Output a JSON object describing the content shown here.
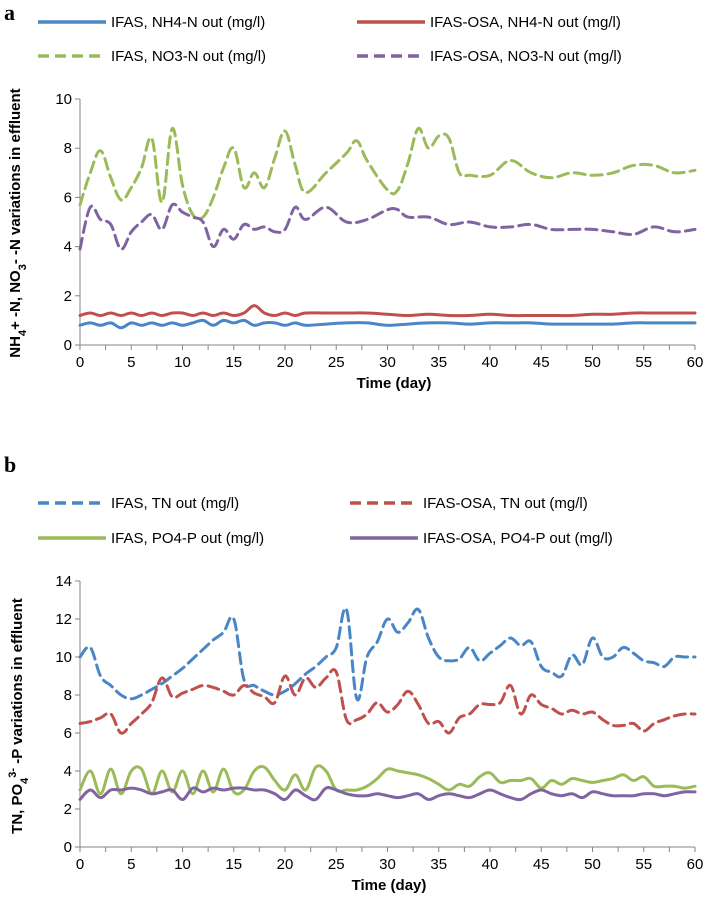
{
  "chart_data": [
    {
      "type": "line",
      "panel": "a",
      "xlabel": "Time (day)",
      "ylabel_parts": [
        "NH",
        "4",
        "+ -N, NO",
        "3",
        "- -N variations in effluent"
      ],
      "xlim": [
        0,
        60
      ],
      "ylim": [
        0,
        10
      ],
      "xticks": [
        0,
        5,
        10,
        15,
        20,
        25,
        30,
        35,
        40,
        45,
        50,
        55,
        60
      ],
      "yticks": [
        0,
        2,
        4,
        6,
        8,
        10
      ],
      "grid": false,
      "legend_position": "top",
      "series": [
        {
          "name": "IFAS, NH4-N out (mg/l)",
          "color": "#4a86c6",
          "dash": "solid",
          "x": [
            0,
            1,
            2,
            3,
            4,
            5,
            6,
            7,
            8,
            9,
            10,
            11,
            12,
            13,
            14,
            15,
            16,
            17,
            18,
            19,
            20,
            21,
            22,
            24,
            26,
            28,
            30,
            32,
            34,
            36,
            38,
            40,
            42,
            44,
            46,
            48,
            50,
            52,
            54,
            56,
            58,
            60
          ],
          "y": [
            0.8,
            0.9,
            0.8,
            0.9,
            0.7,
            0.9,
            0.8,
            0.9,
            0.8,
            0.9,
            0.8,
            0.9,
            1.0,
            0.8,
            1.0,
            0.9,
            1.0,
            0.8,
            0.9,
            0.9,
            0.8,
            0.9,
            0.8,
            0.85,
            0.9,
            0.9,
            0.8,
            0.85,
            0.9,
            0.9,
            0.85,
            0.9,
            0.9,
            0.9,
            0.85,
            0.85,
            0.85,
            0.85,
            0.9,
            0.9,
            0.9,
            0.9
          ]
        },
        {
          "name": "IFAS-OSA, NH4-N out (mg/l)",
          "color": "#c0504d",
          "dash": "solid",
          "x": [
            0,
            1,
            2,
            3,
            4,
            5,
            6,
            7,
            8,
            9,
            10,
            11,
            12,
            13,
            14,
            15,
            16,
            17,
            18,
            19,
            20,
            21,
            22,
            24,
            26,
            28,
            30,
            32,
            34,
            36,
            38,
            40,
            42,
            44,
            46,
            48,
            50,
            52,
            54,
            56,
            58,
            60
          ],
          "y": [
            1.2,
            1.3,
            1.2,
            1.3,
            1.2,
            1.3,
            1.2,
            1.3,
            1.2,
            1.3,
            1.3,
            1.2,
            1.3,
            1.2,
            1.3,
            1.2,
            1.3,
            1.6,
            1.3,
            1.2,
            1.3,
            1.2,
            1.3,
            1.3,
            1.3,
            1.3,
            1.25,
            1.2,
            1.25,
            1.2,
            1.2,
            1.25,
            1.2,
            1.2,
            1.2,
            1.2,
            1.25,
            1.25,
            1.3,
            1.3,
            1.3,
            1.3
          ]
        },
        {
          "name": "IFAS, NO3-N out (mg/l)",
          "color": "#9bbb59",
          "dash": "dashed",
          "x": [
            0,
            1,
            2,
            3,
            4,
            5,
            6,
            7,
            8,
            9,
            10,
            11,
            12,
            13,
            14,
            15,
            16,
            17,
            18,
            19,
            20,
            21,
            22,
            24,
            26,
            27,
            28,
            30,
            31,
            32,
            33,
            34,
            35,
            36,
            37,
            38,
            40,
            42,
            44,
            46,
            48,
            50,
            52,
            54,
            56,
            58,
            60
          ],
          "y": [
            5.7,
            7.0,
            7.9,
            6.8,
            5.9,
            6.4,
            7.2,
            8.4,
            5.8,
            8.8,
            6.5,
            5.3,
            5.2,
            6.0,
            7.2,
            8.0,
            6.4,
            7.0,
            6.4,
            7.6,
            8.7,
            7.3,
            6.2,
            7.0,
            7.8,
            8.3,
            7.5,
            6.3,
            6.3,
            7.4,
            8.8,
            8.0,
            8.5,
            8.4,
            7.0,
            6.9,
            6.9,
            7.5,
            7.0,
            6.8,
            7.0,
            6.9,
            7.0,
            7.3,
            7.3,
            7.0,
            7.1
          ]
        },
        {
          "name": "IFAS-OSA, NO3-N out (mg/l)",
          "color": "#8064a2",
          "dash": "dashed",
          "x": [
            0,
            1,
            2,
            3,
            4,
            5,
            6,
            7,
            8,
            9,
            10,
            11,
            12,
            13,
            14,
            15,
            16,
            17,
            18,
            19,
            20,
            21,
            22,
            24,
            26,
            28,
            30,
            31,
            32,
            34,
            36,
            38,
            40,
            42,
            44,
            46,
            48,
            50,
            52,
            54,
            56,
            58,
            60
          ],
          "y": [
            3.9,
            5.6,
            5.1,
            4.9,
            3.9,
            4.6,
            5.0,
            5.3,
            4.7,
            5.7,
            5.4,
            5.2,
            5.0,
            4.0,
            4.7,
            4.3,
            4.9,
            4.7,
            4.8,
            4.6,
            4.7,
            5.6,
            5.1,
            5.6,
            5.0,
            5.1,
            5.5,
            5.5,
            5.2,
            5.2,
            4.9,
            5.0,
            4.8,
            4.8,
            4.9,
            4.7,
            4.7,
            4.7,
            4.6,
            4.5,
            4.8,
            4.6,
            4.7
          ]
        }
      ]
    },
    {
      "type": "line",
      "panel": "b",
      "xlabel": "Time (day)",
      "ylabel_parts": [
        "TN, PO",
        "4",
        "3-",
        " -P variations in effluent"
      ],
      "xlim": [
        0,
        60
      ],
      "ylim": [
        0,
        14
      ],
      "xticks": [
        0,
        5,
        10,
        15,
        20,
        25,
        30,
        35,
        40,
        45,
        50,
        55,
        60
      ],
      "yticks": [
        0,
        2,
        4,
        6,
        8,
        10,
        12,
        14
      ],
      "grid": false,
      "legend_position": "top",
      "series": [
        {
          "name": "IFAS, TN out (mg/l)",
          "color": "#4a86c6",
          "dash": "dashed",
          "x": [
            0,
            1,
            2,
            3,
            4,
            5,
            6,
            7,
            8,
            9,
            10,
            11,
            12,
            13,
            14,
            15,
            16,
            17,
            18,
            19,
            20,
            21,
            22,
            23,
            24,
            25,
            26,
            27,
            28,
            29,
            30,
            31,
            32,
            33,
            34,
            35,
            36,
            37,
            38,
            39,
            40,
            41,
            42,
            43,
            44,
            45,
            46,
            47,
            48,
            49,
            50,
            51,
            52,
            53,
            54,
            55,
            56,
            57,
            58,
            59,
            60
          ],
          "y": [
            10.0,
            10.5,
            9.0,
            8.5,
            8.0,
            7.8,
            8.0,
            8.3,
            8.6,
            9.0,
            9.4,
            9.9,
            10.4,
            10.9,
            11.3,
            12.0,
            8.8,
            8.5,
            8.2,
            8.0,
            8.2,
            8.6,
            9.1,
            9.5,
            10.0,
            10.5,
            12.5,
            7.8,
            10.0,
            10.8,
            12.0,
            11.3,
            11.8,
            12.5,
            11.0,
            10.0,
            9.8,
            9.9,
            10.5,
            9.8,
            10.2,
            10.6,
            11.0,
            10.6,
            10.8,
            9.5,
            9.2,
            9.0,
            10.1,
            9.6,
            11.0,
            10.0,
            10.0,
            10.5,
            10.2,
            9.8,
            9.7,
            9.5,
            10.0,
            10.0,
            10.0
          ]
        },
        {
          "name": "IFAS-OSA, TN out (mg/l)",
          "color": "#c0504d",
          "dash": "dashed",
          "x": [
            0,
            1,
            2,
            3,
            4,
            5,
            6,
            7,
            8,
            9,
            10,
            11,
            12,
            13,
            14,
            15,
            16,
            17,
            18,
            19,
            20,
            21,
            22,
            23,
            24,
            25,
            26,
            27,
            28,
            29,
            30,
            31,
            32,
            33,
            34,
            35,
            36,
            37,
            38,
            39,
            40,
            41,
            42,
            43,
            44,
            45,
            46,
            47,
            48,
            49,
            50,
            51,
            52,
            53,
            54,
            55,
            56,
            57,
            58,
            59,
            60
          ],
          "y": [
            6.5,
            6.6,
            6.8,
            7.0,
            6.0,
            6.5,
            7.0,
            7.6,
            8.9,
            7.9,
            8.1,
            8.3,
            8.5,
            8.4,
            8.2,
            8.0,
            8.5,
            8.1,
            7.9,
            7.6,
            9.0,
            8.0,
            8.9,
            8.4,
            8.9,
            9.2,
            6.7,
            6.7,
            7.0,
            7.6,
            7.1,
            7.5,
            8.2,
            7.5,
            6.5,
            6.6,
            6.0,
            6.8,
            7.0,
            7.5,
            7.5,
            7.6,
            8.5,
            7.0,
            8.0,
            7.5,
            7.3,
            7.0,
            7.2,
            7.0,
            7.1,
            6.7,
            6.4,
            6.4,
            6.5,
            6.1,
            6.5,
            6.7,
            6.9,
            7.0,
            7.0
          ]
        },
        {
          "name": "IFAS, PO4-P out (mg/l)",
          "color": "#9bbb59",
          "dash": "solid",
          "x": [
            0,
            1,
            2,
            3,
            4,
            5,
            6,
            7,
            8,
            9,
            10,
            11,
            12,
            13,
            14,
            15,
            16,
            17,
            18,
            19,
            20,
            21,
            22,
            23,
            24,
            25,
            26,
            27,
            28,
            29,
            30,
            31,
            32,
            33,
            34,
            35,
            36,
            37,
            38,
            39,
            40,
            41,
            42,
            43,
            44,
            45,
            46,
            47,
            48,
            49,
            50,
            51,
            52,
            53,
            54,
            55,
            56,
            57,
            58,
            59,
            60
          ],
          "y": [
            3.0,
            4.0,
            2.8,
            4.1,
            2.8,
            4.0,
            4.1,
            2.8,
            4.0,
            2.9,
            4.0,
            2.8,
            4.0,
            2.9,
            4.1,
            2.9,
            3.0,
            4.0,
            4.2,
            3.5,
            3.0,
            3.8,
            3.0,
            4.2,
            4.0,
            3.0,
            3.0,
            3.0,
            3.2,
            3.6,
            4.1,
            4.0,
            3.9,
            3.8,
            3.6,
            3.3,
            3.0,
            3.3,
            3.2,
            3.7,
            3.9,
            3.4,
            3.5,
            3.5,
            3.6,
            3.1,
            3.5,
            3.3,
            3.6,
            3.5,
            3.4,
            3.5,
            3.6,
            3.8,
            3.5,
            3.7,
            3.2,
            3.2,
            3.2,
            3.1,
            3.2
          ]
        },
        {
          "name": "IFAS-OSA, PO4-P out (mg/l)",
          "color": "#8064a2",
          "dash": "solid",
          "x": [
            0,
            1,
            2,
            3,
            4,
            5,
            6,
            7,
            8,
            9,
            10,
            11,
            12,
            13,
            14,
            15,
            16,
            17,
            18,
            19,
            20,
            21,
            22,
            23,
            24,
            25,
            26,
            27,
            28,
            29,
            30,
            31,
            32,
            33,
            34,
            35,
            36,
            37,
            38,
            39,
            40,
            41,
            42,
            43,
            44,
            45,
            46,
            47,
            48,
            49,
            50,
            51,
            52,
            53,
            54,
            55,
            56,
            57,
            58,
            59,
            60
          ],
          "y": [
            2.5,
            3.0,
            2.6,
            3.0,
            3.0,
            3.1,
            3.0,
            2.8,
            2.9,
            3.0,
            2.5,
            3.1,
            2.9,
            3.1,
            3.0,
            3.1,
            3.1,
            3.0,
            3.0,
            2.8,
            2.5,
            3.0,
            2.7,
            2.5,
            3.1,
            3.0,
            2.8,
            2.7,
            2.7,
            2.8,
            2.7,
            2.6,
            2.7,
            2.8,
            2.5,
            2.7,
            2.8,
            2.7,
            2.6,
            2.8,
            3.0,
            2.8,
            2.6,
            2.5,
            2.8,
            3.0,
            2.8,
            2.7,
            2.8,
            2.6,
            2.9,
            2.8,
            2.7,
            2.7,
            2.7,
            2.8,
            2.8,
            2.7,
            2.8,
            2.9,
            2.9
          ]
        }
      ]
    }
  ]
}
